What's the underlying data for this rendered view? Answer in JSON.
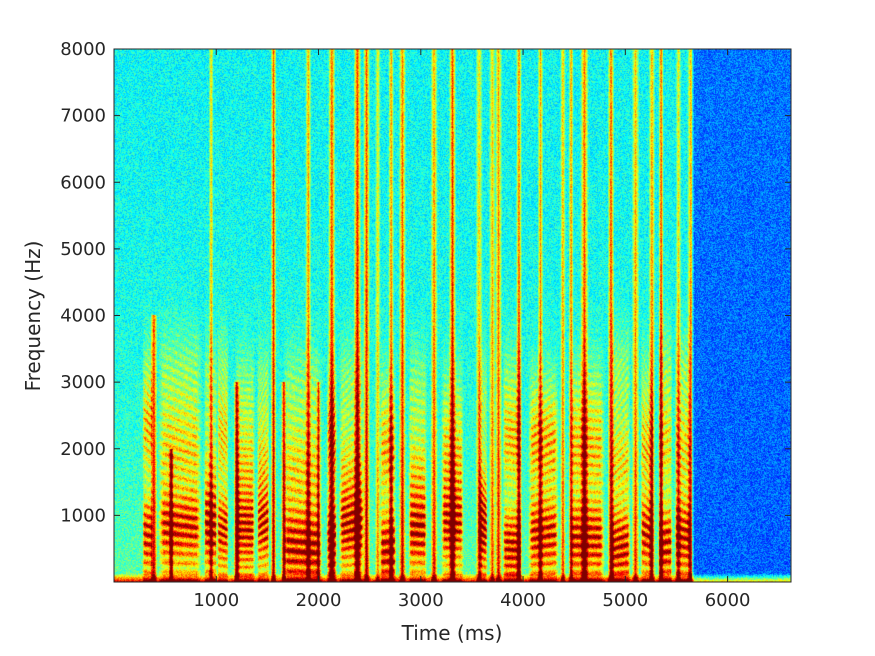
{
  "chart_data": {
    "type": "heatmap",
    "kind": "spectrogram",
    "title": "",
    "xlabel": "Time (ms)",
    "ylabel": "Frequency (Hz)",
    "xlim": [
      0,
      6620
    ],
    "ylim": [
      0,
      8000
    ],
    "x_ticks": [
      1000,
      2000,
      3000,
      4000,
      5000,
      6000
    ],
    "y_ticks": [
      1000,
      2000,
      3000,
      4000,
      5000,
      6000,
      7000,
      8000
    ],
    "x_tick_labels": [
      "1000",
      "2000",
      "3000",
      "4000",
      "5000",
      "6000"
    ],
    "y_tick_labels": [
      "1000",
      "2000",
      "3000",
      "4000",
      "5000",
      "6000",
      "7000",
      "8000"
    ],
    "colormap": "jet",
    "colormap_stops": [
      "#00008f",
      "#0000ff",
      "#00ffff",
      "#ffff00",
      "#ff0000",
      "#800000"
    ],
    "grid": false,
    "speech_end_ms": 5650,
    "voiced_segments_ms": [
      [
        280,
        380
      ],
      [
        430,
        860
      ],
      [
        880,
        1010
      ],
      [
        1010,
        1120
      ],
      [
        1180,
        1380
      ],
      [
        1400,
        1520
      ],
      [
        1650,
        2040
      ],
      [
        2080,
        2180
      ],
      [
        2200,
        2450
      ],
      [
        2600,
        2760
      ],
      [
        2880,
        3060
      ],
      [
        3200,
        3420
      ],
      [
        3560,
        3650
      ],
      [
        3800,
        3990
      ],
      [
        4050,
        4350
      ],
      [
        4450,
        4800
      ],
      [
        4850,
        5050
      ],
      [
        5150,
        5280
      ],
      [
        5320,
        5460
      ],
      [
        5480,
        5650
      ]
    ],
    "vertical_bands_ms": [
      [
        390,
        4000
      ],
      [
        560,
        2000
      ],
      [
        950,
        8000
      ],
      [
        1200,
        3000
      ],
      [
        1560,
        8000
      ],
      [
        1660,
        3000
      ],
      [
        1900,
        8000
      ],
      [
        2000,
        3000
      ],
      [
        2130,
        8000
      ],
      [
        2380,
        8000
      ],
      [
        2470,
        8000
      ],
      [
        2580,
        8000
      ],
      [
        2710,
        8000
      ],
      [
        2820,
        8000
      ],
      [
        3130,
        8000
      ],
      [
        3310,
        8000
      ],
      [
        3570,
        8000
      ],
      [
        3700,
        8000
      ],
      [
        3760,
        8000
      ],
      [
        3960,
        8000
      ],
      [
        4170,
        8000
      ],
      [
        4390,
        8000
      ],
      [
        4470,
        8000
      ],
      [
        4600,
        8000
      ],
      [
        4860,
        8000
      ],
      [
        5100,
        8000
      ],
      [
        5260,
        8000
      ],
      [
        5350,
        8000
      ],
      [
        5520,
        8000
      ],
      [
        5640,
        8000
      ]
    ]
  }
}
